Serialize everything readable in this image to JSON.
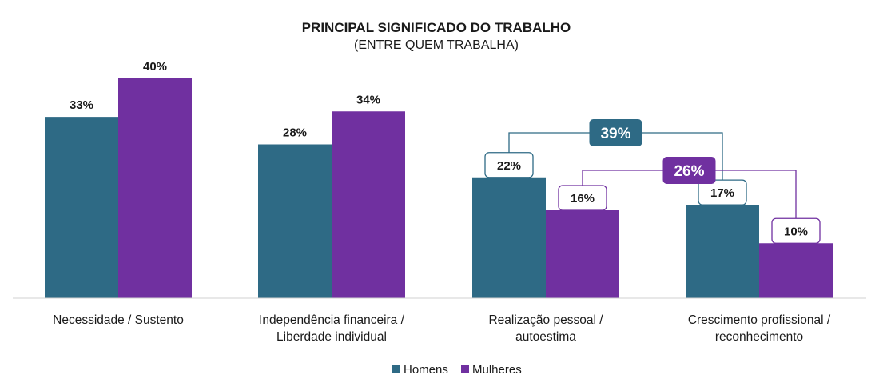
{
  "chart_data": {
    "type": "bar",
    "title": "PRINCIPAL SIGNIFICADO DO TRABALHO",
    "subtitle": "(ENTRE QUEM TRABALHA)",
    "categories": [
      [
        "Necessidade / Sustento"
      ],
      [
        "Independência financeira /",
        "Liberdade individual"
      ],
      [
        "Realização pessoal /",
        "autoestima"
      ],
      [
        "Crescimento profissional /",
        "reconhecimento"
      ]
    ],
    "series": [
      {
        "name": "Homens",
        "color": "#2e6a85",
        "values": [
          33,
          28,
          22,
          17
        ],
        "labels": [
          "33%",
          "28%",
          "22%",
          "17%"
        ]
      },
      {
        "name": "Mulheres",
        "color": "#7030a0",
        "values": [
          40,
          34,
          16,
          10
        ],
        "labels": [
          "40%",
          "34%",
          "16%",
          "10%"
        ]
      }
    ],
    "ylim": [
      0,
      40
    ],
    "boxed_labels_from_category": 2,
    "annotations": [
      {
        "series": "Homens",
        "categories": [
          2,
          3
        ],
        "label": "39%",
        "color": "#2e6a85"
      },
      {
        "series": "Mulheres",
        "categories": [
          2,
          3
        ],
        "label": "26%",
        "color": "#7030a0"
      }
    ],
    "legend": "bottom"
  }
}
